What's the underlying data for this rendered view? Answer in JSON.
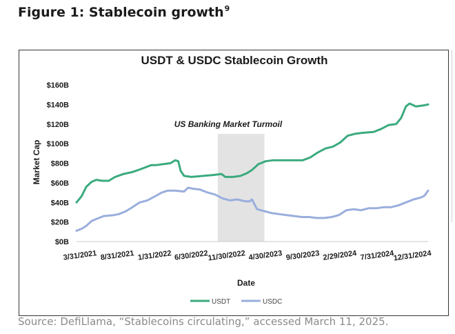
{
  "figure": {
    "title": "Figure 1: Stablecoin growth",
    "footnote_ref": "9",
    "source": "Source: DefiLlama, “Stablecoins circulating,” accessed March 11, 2025."
  },
  "chart_data": {
    "type": "line",
    "title": "USDT & USDC Stablecoin Growth",
    "xlabel": "Date",
    "ylabel": "Market Cap",
    "x_start": "2021-03-31",
    "x_end": "2025-03-11",
    "x_ticks": [
      {
        "date": "2021-03-31",
        "label": "3/31/2021"
      },
      {
        "date": "2021-08-31",
        "label": "8/31/2021"
      },
      {
        "date": "2022-01-31",
        "label": "1/31/2022"
      },
      {
        "date": "2022-06-30",
        "label": "6/30/2022"
      },
      {
        "date": "2022-11-30",
        "label": "11/30/2022"
      },
      {
        "date": "2023-04-30",
        "label": "4/30/2023"
      },
      {
        "date": "2023-09-30",
        "label": "9/30/2023"
      },
      {
        "date": "2024-02-29",
        "label": "2/29/2024"
      },
      {
        "date": "2024-07-31",
        "label": "7/31/2024"
      },
      {
        "date": "2024-12-31",
        "label": "12/31/2024"
      }
    ],
    "ylim": [
      0,
      160
    ],
    "y_ticks": [
      {
        "value": 0,
        "label": "$0B"
      },
      {
        "value": 20,
        "label": "$20B"
      },
      {
        "value": 40,
        "label": "$40B"
      },
      {
        "value": 60,
        "label": "$60B"
      },
      {
        "value": 80,
        "label": "$80B"
      },
      {
        "value": 100,
        "label": "$100B"
      },
      {
        "value": 120,
        "label": "$120B"
      },
      {
        "value": 140,
        "label": "$140B"
      },
      {
        "value": 160,
        "label": "$160B"
      }
    ],
    "grid": false,
    "legend_position": "bottom",
    "annotation": {
      "label": "US Banking Market Turmoil",
      "start": "2022-10-31",
      "end": "2023-05-10",
      "color": "#e3e3e3"
    },
    "series": [
      {
        "name": "USDT",
        "color": "#3aaa7e",
        "points": [
          [
            "2021-03-31",
            40
          ],
          [
            "2021-04-20",
            46
          ],
          [
            "2021-05-10",
            56
          ],
          [
            "2021-06-01",
            61
          ],
          [
            "2021-06-20",
            63
          ],
          [
            "2021-07-15",
            62
          ],
          [
            "2021-08-10",
            62
          ],
          [
            "2021-09-05",
            66
          ],
          [
            "2021-10-10",
            69
          ],
          [
            "2021-11-15",
            71
          ],
          [
            "2021-12-20",
            74
          ],
          [
            "2022-01-31",
            78
          ],
          [
            "2022-02-20",
            78
          ],
          [
            "2022-03-20",
            79
          ],
          [
            "2022-04-20",
            80
          ],
          [
            "2022-05-10",
            83
          ],
          [
            "2022-05-22",
            82
          ],
          [
            "2022-06-01",
            72
          ],
          [
            "2022-06-15",
            67
          ],
          [
            "2022-07-15",
            66
          ],
          [
            "2022-09-01",
            67
          ],
          [
            "2022-10-15",
            68
          ],
          [
            "2022-11-15",
            69
          ],
          [
            "2022-12-01",
            66
          ],
          [
            "2023-01-01",
            66
          ],
          [
            "2023-02-01",
            67
          ],
          [
            "2023-03-01",
            70
          ],
          [
            "2023-03-20",
            73
          ],
          [
            "2023-04-15",
            79
          ],
          [
            "2023-05-15",
            82
          ],
          [
            "2023-06-15",
            83
          ],
          [
            "2023-08-01",
            83
          ],
          [
            "2023-09-15",
            83
          ],
          [
            "2023-10-15",
            83
          ],
          [
            "2023-11-15",
            86
          ],
          [
            "2023-12-15",
            91
          ],
          [
            "2024-01-15",
            95
          ],
          [
            "2024-02-15",
            97
          ],
          [
            "2024-03-15",
            101
          ],
          [
            "2024-04-15",
            108
          ],
          [
            "2024-05-15",
            110
          ],
          [
            "2024-06-15",
            111
          ],
          [
            "2024-07-31",
            112
          ],
          [
            "2024-08-31",
            115
          ],
          [
            "2024-09-30",
            119
          ],
          [
            "2024-10-31",
            120
          ],
          [
            "2024-11-20",
            126
          ],
          [
            "2024-12-10",
            138
          ],
          [
            "2024-12-25",
            141
          ],
          [
            "2025-01-20",
            138
          ],
          [
            "2025-02-20",
            139
          ],
          [
            "2025-03-11",
            140
          ]
        ]
      },
      {
        "name": "USDC",
        "color": "#99aedd",
        "points": [
          [
            "2021-03-31",
            11
          ],
          [
            "2021-04-20",
            13
          ],
          [
            "2021-05-10",
            16
          ],
          [
            "2021-06-01",
            21
          ],
          [
            "2021-06-20",
            23
          ],
          [
            "2021-07-20",
            26
          ],
          [
            "2021-08-31",
            27
          ],
          [
            "2021-09-20",
            28
          ],
          [
            "2021-10-20",
            31
          ],
          [
            "2021-11-15",
            35
          ],
          [
            "2021-12-15",
            40
          ],
          [
            "2022-01-15",
            42
          ],
          [
            "2022-02-15",
            46
          ],
          [
            "2022-03-15",
            50
          ],
          [
            "2022-04-10",
            52
          ],
          [
            "2022-05-10",
            52
          ],
          [
            "2022-06-15",
            51
          ],
          [
            "2022-07-01",
            55
          ],
          [
            "2022-07-20",
            54
          ],
          [
            "2022-08-20",
            53
          ],
          [
            "2022-09-20",
            50
          ],
          [
            "2022-10-20",
            48
          ],
          [
            "2022-11-20",
            44
          ],
          [
            "2022-12-20",
            42
          ],
          [
            "2023-01-20",
            43
          ],
          [
            "2023-02-20",
            41
          ],
          [
            "2023-03-10",
            41
          ],
          [
            "2023-03-20",
            43
          ],
          [
            "2023-04-10",
            33
          ],
          [
            "2023-05-10",
            31
          ],
          [
            "2023-06-10",
            29
          ],
          [
            "2023-07-10",
            28
          ],
          [
            "2023-08-10",
            27
          ],
          [
            "2023-09-10",
            26
          ],
          [
            "2023-10-10",
            25
          ],
          [
            "2023-11-10",
            25
          ],
          [
            "2023-12-10",
            24
          ],
          [
            "2024-01-10",
            24
          ],
          [
            "2024-02-10",
            25
          ],
          [
            "2024-03-10",
            27
          ],
          [
            "2024-04-10",
            32
          ],
          [
            "2024-05-10",
            33
          ],
          [
            "2024-06-10",
            32
          ],
          [
            "2024-07-10",
            34
          ],
          [
            "2024-08-10",
            34
          ],
          [
            "2024-09-10",
            35
          ],
          [
            "2024-10-10",
            35
          ],
          [
            "2024-11-10",
            37
          ],
          [
            "2024-12-10",
            40
          ],
          [
            "2025-01-10",
            43
          ],
          [
            "2025-02-10",
            45
          ],
          [
            "2025-02-25",
            47
          ],
          [
            "2025-03-11",
            52
          ]
        ]
      }
    ]
  }
}
